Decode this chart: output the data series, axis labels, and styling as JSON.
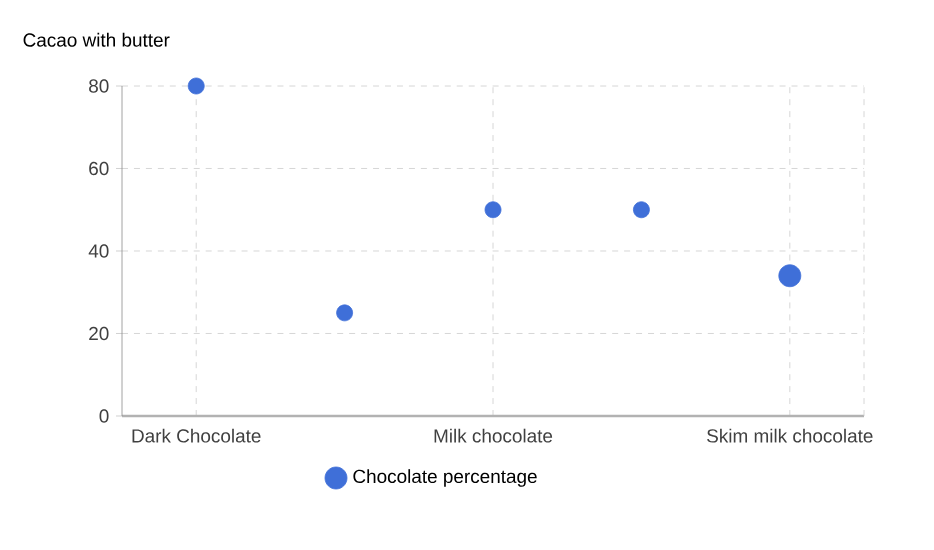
{
  "chart_data": {
    "type": "bubble",
    "ylabel": "Cacao with butter",
    "categories": [
      "Dark Chocolate",
      null,
      "Milk chocolate",
      null,
      "Skim milk chocolate"
    ],
    "series": [
      {
        "name": "Chocolate percentage",
        "color": "#3f6fd8",
        "values": [
          80,
          25,
          50,
          50,
          34
        ],
        "sizes": [
          0.53,
          0.53,
          0.53,
          0.53,
          1
        ]
      }
    ],
    "ylim": [
      0,
      80
    ],
    "yticks": [
      0,
      20,
      40,
      60,
      80
    ],
    "grid": true,
    "legend": "bottom",
    "marker": "circle"
  }
}
